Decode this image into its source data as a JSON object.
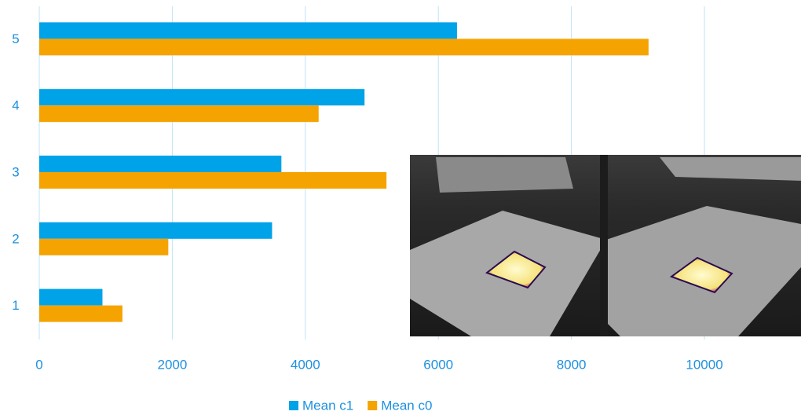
{
  "chart_data": {
    "type": "hbar",
    "categories": [
      "1",
      "2",
      "3",
      "4",
      "5"
    ],
    "series": [
      {
        "name": "Mean c1",
        "color": "#00a2e8",
        "values": [
          950,
          3500,
          3640,
          4890,
          6280
        ]
      },
      {
        "name": "Mean c0",
        "color": "#f5a300",
        "values": [
          1250,
          1940,
          5220,
          4200,
          9160
        ]
      }
    ],
    "xlim": [
      0,
      11400
    ],
    "xticks": [
      0,
      2000,
      4000,
      6000,
      8000,
      10000
    ],
    "grid": true,
    "legend": "bottom"
  }
}
